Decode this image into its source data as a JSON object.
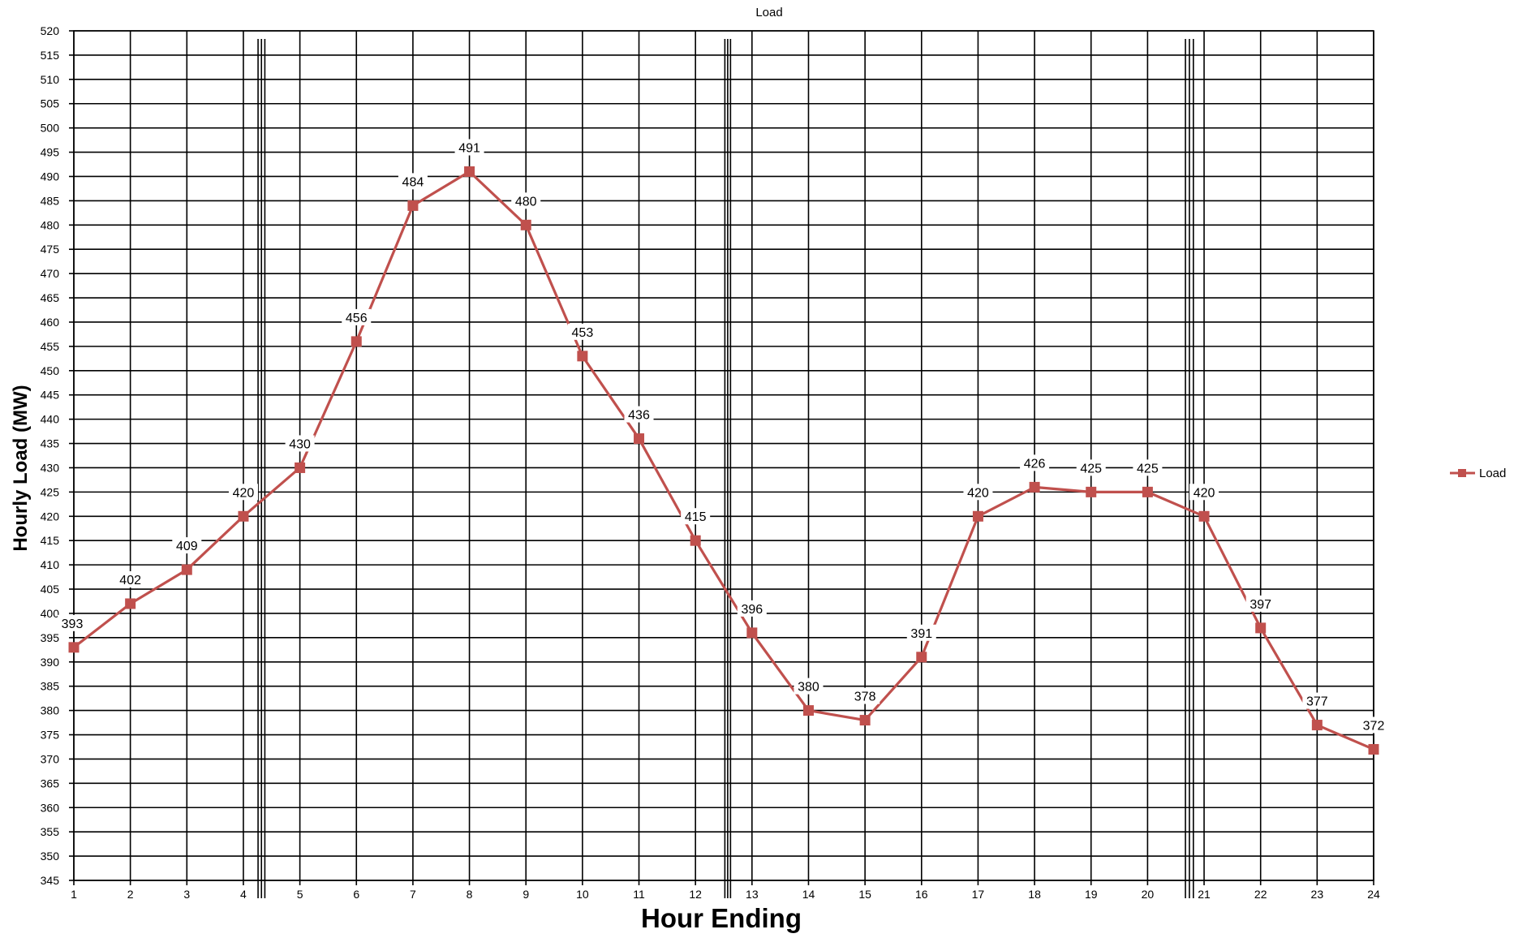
{
  "chart_data": {
    "type": "line",
    "title": "Load",
    "xlabel": "Hour Ending",
    "ylabel": "Hourly Load (MW)",
    "categories": [
      "1",
      "2",
      "3",
      "4",
      "5",
      "6",
      "7",
      "8",
      "9",
      "10",
      "11",
      "12",
      "13",
      "14",
      "15",
      "16",
      "17",
      "18",
      "19",
      "20",
      "21",
      "22",
      "23",
      "24"
    ],
    "series": [
      {
        "name": "Load",
        "color": "#c0504d",
        "values": [
          393,
          402,
          409,
          420,
          430,
          456,
          484,
          491,
          480,
          453,
          436,
          415,
          396,
          380,
          378,
          391,
          420,
          426,
          425,
          425,
          420,
          397,
          377,
          372
        ]
      }
    ],
    "ylim": [
      345,
      520
    ],
    "ytick_step": 5,
    "grid": true,
    "legend": "right",
    "data_labels": true,
    "marker": "square"
  }
}
